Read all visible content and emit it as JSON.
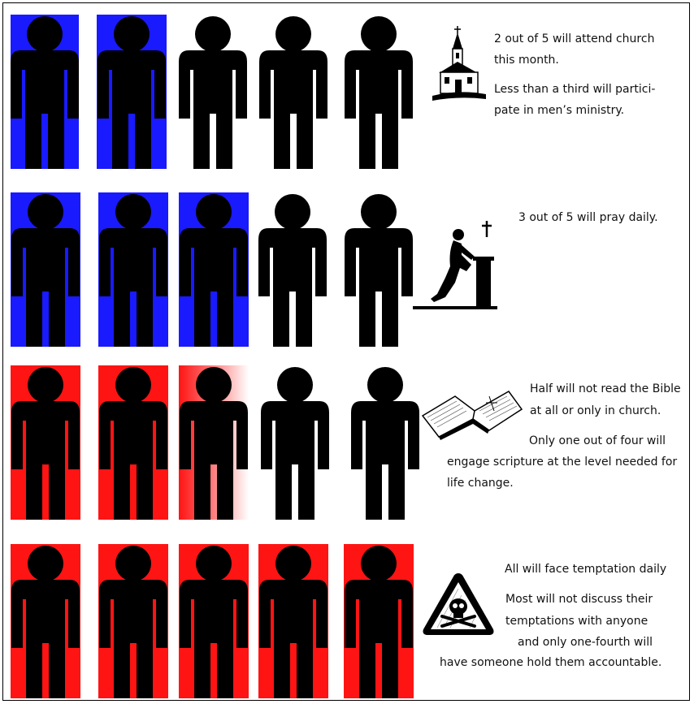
{
  "colors": {
    "blue": "#1a1aff",
    "red": "#ff1414",
    "figure": "#000000"
  },
  "rows": [
    {
      "id": "church",
      "highlight": "blue",
      "highlighted_count": 2,
      "total": 5,
      "icon": "church-icon",
      "lines": [
        "2 out of 5 will attend church",
        "this month.",
        "Less than a third will partici-",
        "pate in men’s ministry."
      ]
    },
    {
      "id": "prayer",
      "highlight": "blue",
      "highlighted_count": 3,
      "total": 5,
      "icon": "praying-man-icon",
      "lines": [
        "3  out of 5 will pray daily."
      ]
    },
    {
      "id": "bible",
      "highlight": "red",
      "highlighted_count": 2.5,
      "total": 5,
      "icon": "open-bible-icon",
      "lines": [
        "Half will not read the Bible",
        "at all or only in church.",
        "Only one out of four will",
        "engage scripture at the level needed for",
        "life change."
      ]
    },
    {
      "id": "temptation",
      "highlight": "red",
      "highlighted_count": 5,
      "total": 5,
      "icon": "skull-warning-icon",
      "lines": [
        "All will face temptation daily",
        "Most will not discuss their",
        "temptations with anyone",
        "and only one-fourth will",
        "have someone hold them accountable."
      ]
    }
  ]
}
